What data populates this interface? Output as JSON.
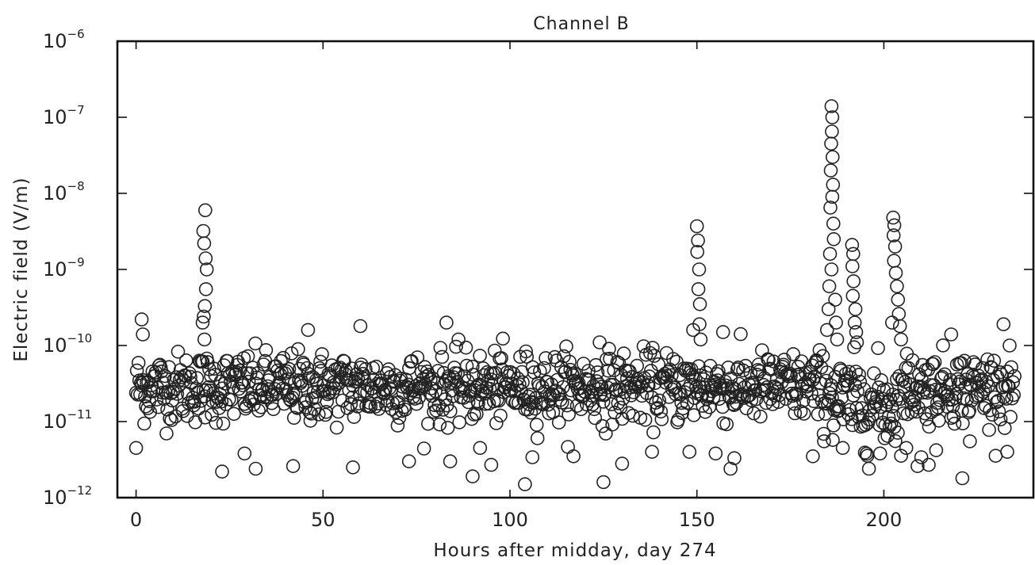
{
  "chart_data": {
    "type": "scatter",
    "title": "Channel B",
    "xlabel": "Hours after midday, day 274",
    "ylabel": "Electric field (V/m)",
    "xlim": [
      -5,
      240
    ],
    "ylim": [
      1e-12,
      1e-06
    ],
    "yscale": "log",
    "grid": false,
    "marker": "open-circle",
    "x_ticks": [
      {
        "value": 0,
        "label": "0"
      },
      {
        "value": 50,
        "label": "50"
      },
      {
        "value": 100,
        "label": "100"
      },
      {
        "value": 150,
        "label": "150"
      },
      {
        "value": 200,
        "label": "200"
      }
    ],
    "y_ticks": [
      {
        "value": 1e-12,
        "base": "10",
        "exp": "−12"
      },
      {
        "value": 1e-11,
        "base": "10",
        "exp": "−11"
      },
      {
        "value": 1e-10,
        "base": "10",
        "exp": "−10"
      },
      {
        "value": 1e-09,
        "base": "10",
        "exp": "−9"
      },
      {
        "value": 1e-08,
        "base": "10",
        "exp": "−8"
      },
      {
        "value": 1e-07,
        "base": "10",
        "exp": "−7"
      },
      {
        "value": 1e-06,
        "base": "10",
        "exp": "−6"
      }
    ],
    "background_band": {
      "x_start": 0,
      "x_end": 235,
      "log10_center": -10.55,
      "log10_spread": 0.42
    },
    "notable_points": [
      [
        0,
        4.5e-12
      ],
      [
        1.5,
        2.2e-10
      ],
      [
        1.8,
        1.4e-10
      ],
      [
        18.5,
        6e-09
      ],
      [
        18,
        3.2e-09
      ],
      [
        18.2,
        2.2e-09
      ],
      [
        18.6,
        1.4e-09
      ],
      [
        18.9,
        1e-09
      ],
      [
        18.7,
        5.5e-10
      ],
      [
        18.4,
        3.3e-10
      ],
      [
        18.1,
        2.4e-10
      ],
      [
        17.8,
        2e-10
      ],
      [
        18.3,
        1.2e-10
      ],
      [
        23,
        2.2e-12
      ],
      [
        29,
        3.8e-12
      ],
      [
        32,
        2.4e-12
      ],
      [
        42,
        2.6e-12
      ],
      [
        46,
        1.6e-10
      ],
      [
        58,
        2.5e-12
      ],
      [
        60,
        1.8e-10
      ],
      [
        73,
        3e-12
      ],
      [
        83,
        2e-10
      ],
      [
        84,
        3e-12
      ],
      [
        90,
        1.9e-12
      ],
      [
        92,
        4.5e-12
      ],
      [
        95,
        2.7e-12
      ],
      [
        104,
        1.5e-12
      ],
      [
        106,
        3.4e-12
      ],
      [
        117,
        3.5e-12
      ],
      [
        124,
        1.1e-10
      ],
      [
        125,
        1.6e-12
      ],
      [
        130,
        2.8e-12
      ],
      [
        138,
        4e-12
      ],
      [
        148,
        4e-12
      ],
      [
        149,
        1.6e-10
      ],
      [
        150,
        3.7e-09
      ],
      [
        150.3,
        2.4e-09
      ],
      [
        150.1,
        1.7e-09
      ],
      [
        150.6,
        1e-09
      ],
      [
        150.4,
        5.5e-10
      ],
      [
        150.8,
        3.5e-10
      ],
      [
        151,
        1.2e-10
      ],
      [
        150.7,
        1.9e-10
      ],
      [
        155,
        3.8e-12
      ],
      [
        157,
        1.5e-10
      ],
      [
        159,
        2.4e-12
      ],
      [
        160,
        3.3e-12
      ],
      [
        181,
        3.5e-12
      ],
      [
        184,
        5.5e-12
      ],
      [
        186,
        1.4e-07
      ],
      [
        186.2,
        1e-07
      ],
      [
        186.1,
        6.5e-08
      ],
      [
        185.9,
        4.5e-08
      ],
      [
        186.3,
        3e-08
      ],
      [
        185.8,
        2e-08
      ],
      [
        186.4,
        1.3e-08
      ],
      [
        186.2,
        9e-09
      ],
      [
        185.7,
        6.5e-09
      ],
      [
        186.5,
        4e-09
      ],
      [
        186.6,
        2.5e-09
      ],
      [
        185.6,
        1.6e-09
      ],
      [
        186,
        1e-09
      ],
      [
        185.4,
        6e-10
      ],
      [
        187,
        4e-10
      ],
      [
        185.2,
        3e-10
      ],
      [
        187.2,
        2e-10
      ],
      [
        184.8,
        1.6e-10
      ],
      [
        187.5,
        1.2e-10
      ],
      [
        189,
        4.5e-12
      ],
      [
        191.5,
        2.1e-09
      ],
      [
        191.8,
        1.6e-09
      ],
      [
        191.6,
        1.1e-09
      ],
      [
        191.9,
        7e-10
      ],
      [
        191.7,
        4.5e-10
      ],
      [
        192.4,
        3e-10
      ],
      [
        192.2,
        2e-10
      ],
      [
        192.6,
        1.5e-10
      ],
      [
        192.8,
        1.1e-10
      ],
      [
        196,
        2.4e-12
      ],
      [
        199,
        3.8e-12
      ],
      [
        201,
        6.5e-12
      ],
      [
        202.5,
        4.8e-09
      ],
      [
        202.8,
        3.8e-09
      ],
      [
        202.6,
        2.8e-09
      ],
      [
        203,
        2e-09
      ],
      [
        202.7,
        1.3e-09
      ],
      [
        203.2,
        9e-10
      ],
      [
        203.5,
        6e-10
      ],
      [
        203.8,
        4e-10
      ],
      [
        204,
        2.6e-10
      ],
      [
        204.3,
        1.8e-10
      ],
      [
        202.2,
        2e-10
      ],
      [
        204.6,
        1.2e-10
      ],
      [
        206,
        4.5e-12
      ],
      [
        209,
        2.6e-12
      ],
      [
        210,
        3.4e-12
      ],
      [
        212,
        2.7e-12
      ],
      [
        214,
        4.2e-12
      ],
      [
        218,
        1.4e-10
      ],
      [
        221,
        1.8e-12
      ],
      [
        223,
        5.5e-12
      ],
      [
        232,
        1.9e-10
      ],
      [
        233,
        4e-12
      ]
    ]
  }
}
